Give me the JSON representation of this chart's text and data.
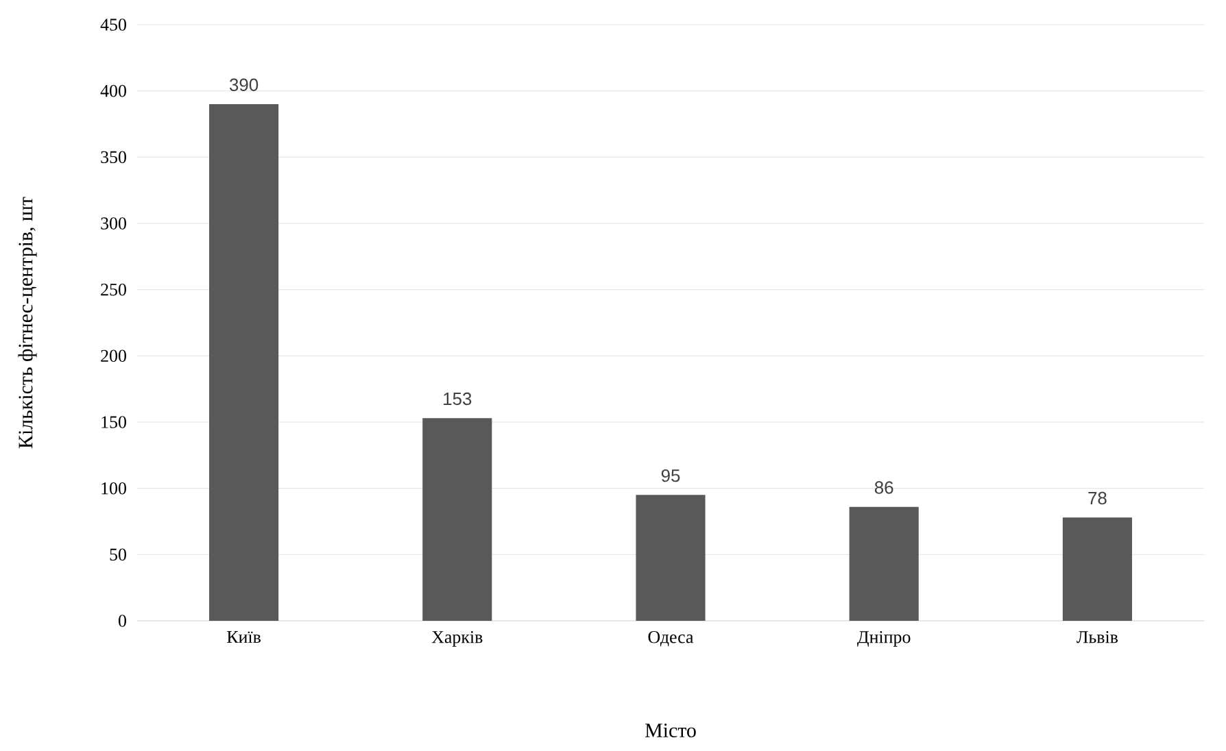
{
  "chart_data": {
    "type": "bar",
    "xlabel": "Місто",
    "ylabel": "Кількість фітнес-центрів, шт",
    "categories": [
      "Київ",
      "Харків",
      "Одеса",
      "Дніпро",
      "Львів"
    ],
    "values": [
      390,
      153,
      95,
      86,
      78
    ],
    "color": "#595959",
    "ylim": [
      0,
      450
    ],
    "yticks": [
      0,
      50,
      100,
      150,
      200,
      250,
      300,
      350,
      400,
      450
    ],
    "grid": "y",
    "data_labels": true
  }
}
